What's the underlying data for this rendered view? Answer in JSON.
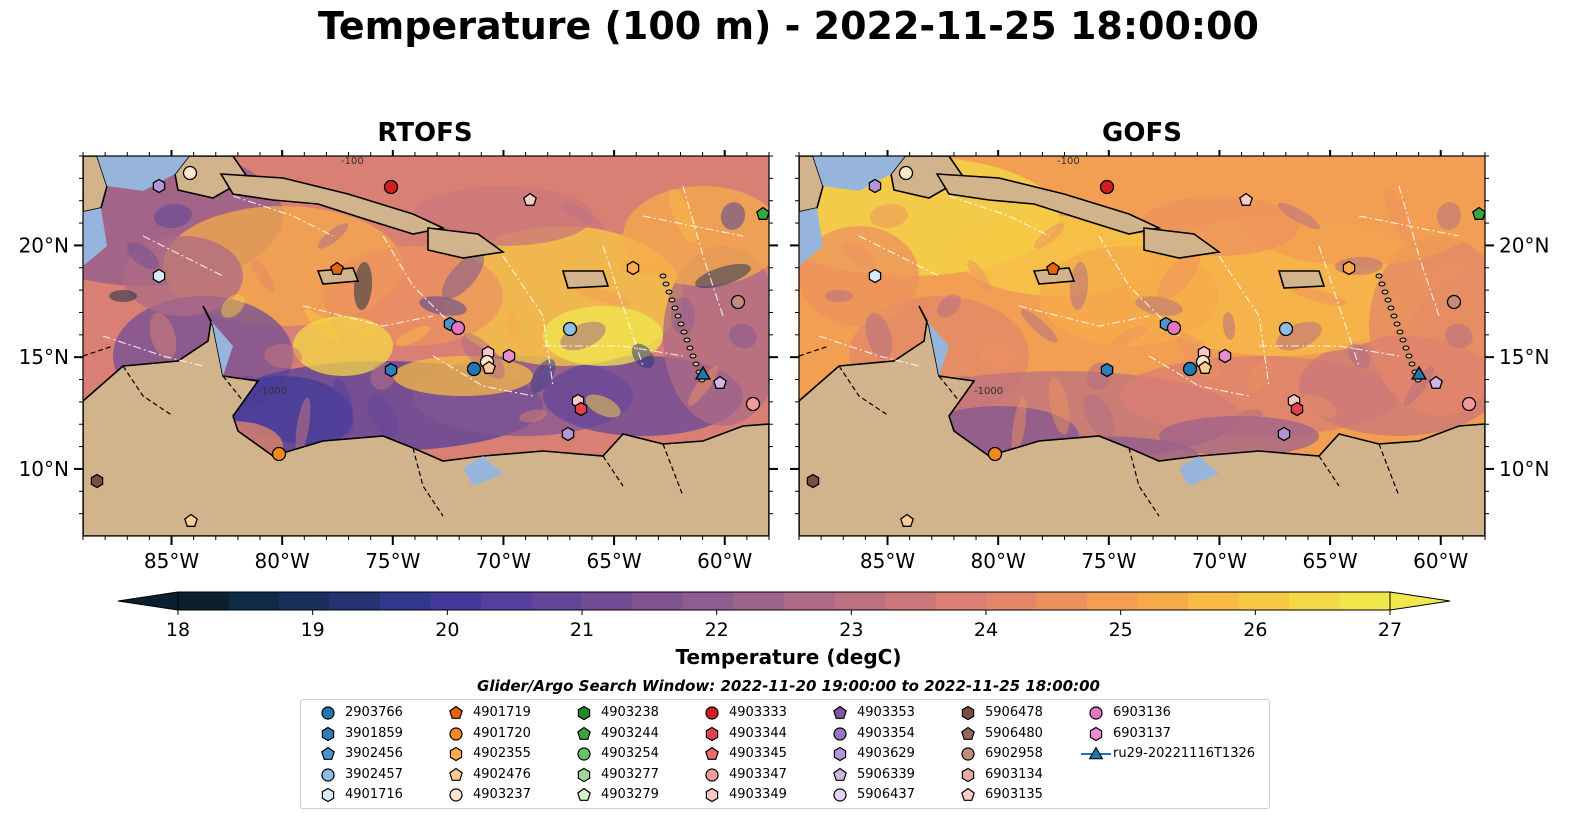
{
  "title": "Temperature (100 m) - 2022-11-25 18:00:00",
  "panels": [
    {
      "name": "RTOFS"
    },
    {
      "name": "GOFS"
    }
  ],
  "chart_data": [
    {
      "type": "heatmap",
      "title": "RTOFS",
      "x_ticks": [
        "85°W",
        "80°W",
        "75°W",
        "70°W",
        "65°W",
        "60°W"
      ],
      "x_tick_values": [
        -85,
        -80,
        -75,
        -70,
        -65,
        -60
      ],
      "y_ticks": [
        "20°N",
        "15°N",
        "10°N"
      ],
      "y_tick_values": [
        20,
        15,
        10
      ],
      "xlim": [
        -89,
        -58
      ],
      "ylim": [
        7,
        24
      ],
      "contour_labels": [
        "-1000",
        "-100"
      ],
      "variable": "Temperature",
      "units": "degC",
      "depth": "100 m"
    },
    {
      "type": "heatmap",
      "title": "GOFS",
      "x_ticks": [
        "85°W",
        "80°W",
        "75°W",
        "70°W",
        "65°W",
        "60°W"
      ],
      "x_tick_values": [
        -85,
        -80,
        -75,
        -70,
        -65,
        -60
      ],
      "y_ticks": [
        "20°N",
        "15°N",
        "10°N"
      ],
      "y_tick_values": [
        20,
        15,
        10
      ],
      "xlim": [
        -89,
        -58
      ],
      "ylim": [
        7,
        24
      ],
      "contour_labels": [
        "-1000",
        "-100"
      ],
      "variable": "Temperature",
      "units": "degC",
      "depth": "100 m"
    }
  ],
  "colorbar": {
    "label": "Temperature (degC)",
    "min": 18,
    "max": 27,
    "ticks": [
      "18",
      "19",
      "20",
      "21",
      "22",
      "23",
      "24",
      "25",
      "26",
      "27"
    ],
    "colors": [
      "#0b1f2e",
      "#0f2a44",
      "#182f5c",
      "#243374",
      "#31378d",
      "#423b99",
      "#543f9c",
      "#644699",
      "#724d96",
      "#815592",
      "#8f5c8f",
      "#9e638b",
      "#ad6b85",
      "#bc7180",
      "#cb777a",
      "#d97f73",
      "#e3876a",
      "#ec925f",
      "#f29e53",
      "#f5ab4a",
      "#f7ba45",
      "#f7c943",
      "#f4d845",
      "#f0e74d"
    ],
    "extend": "both"
  },
  "search_window": "Glider/Argo Search Window: 2022-11-20 19:00:00 to 2022-11-25 18:00:00",
  "legend": [
    {
      "label": "2903766",
      "marker": "circle",
      "color": "#1f77b4"
    },
    {
      "label": "3901859",
      "marker": "hexagon",
      "color": "#2e7ebd"
    },
    {
      "label": "3902456",
      "marker": "pentagon",
      "color": "#4d93cf"
    },
    {
      "label": "3902457",
      "marker": "circle",
      "color": "#8fbde3"
    },
    {
      "label": "4901716",
      "marker": "hexagon",
      "color": "#d6e9f8"
    },
    {
      "label": "4901719",
      "marker": "pentagon",
      "color": "#e6640c"
    },
    {
      "label": "4901720",
      "marker": "circle",
      "color": "#f5881f"
    },
    {
      "label": "4902355",
      "marker": "hexagon",
      "color": "#fbaa50"
    },
    {
      "label": "4902476",
      "marker": "pentagon",
      "color": "#fdcb94"
    },
    {
      "label": "4903237",
      "marker": "circle",
      "color": "#fde6cc"
    },
    {
      "label": "4903238",
      "marker": "hexagon",
      "color": "#22882a"
    },
    {
      "label": "4903244",
      "marker": "pentagon",
      "color": "#3aa53f"
    },
    {
      "label": "4903254",
      "marker": "circle",
      "color": "#66c466"
    },
    {
      "label": "4903277",
      "marker": "hexagon",
      "color": "#9ed99a"
    },
    {
      "label": "4903279",
      "marker": "pentagon",
      "color": "#d3f0cc"
    },
    {
      "label": "4903333",
      "marker": "circle",
      "color": "#d11f1f"
    },
    {
      "label": "4903344",
      "marker": "hexagon",
      "color": "#e2424a"
    },
    {
      "label": "4903345",
      "marker": "pentagon",
      "color": "#ec6a6e"
    },
    {
      "label": "4903347",
      "marker": "circle",
      "color": "#f59a9a"
    },
    {
      "label": "4903349",
      "marker": "hexagon",
      "color": "#fbc8c6"
    },
    {
      "label": "4903353",
      "marker": "pentagon",
      "color": "#7e55a8"
    },
    {
      "label": "4903354",
      "marker": "circle",
      "color": "#9a75c3"
    },
    {
      "label": "4903629",
      "marker": "hexagon",
      "color": "#b396d6"
    },
    {
      "label": "5906339",
      "marker": "pentagon",
      "color": "#cdb5e6"
    },
    {
      "label": "5906437",
      "marker": "circle",
      "color": "#e4d4f2"
    },
    {
      "label": "5906478",
      "marker": "hexagon",
      "color": "#7b4d44"
    },
    {
      "label": "5906480",
      "marker": "pentagon",
      "color": "#98675b"
    },
    {
      "label": "6902958",
      "marker": "circle",
      "color": "#c38b7b"
    },
    {
      "label": "6903134",
      "marker": "hexagon",
      "color": "#e7aba0"
    },
    {
      "label": "6903135",
      "marker": "pentagon",
      "color": "#f7cdc5"
    },
    {
      "label": "6903136",
      "marker": "circle",
      "color": "#e377c2"
    },
    {
      "label": "6903137",
      "marker": "hexagon",
      "color": "#ea8cce"
    },
    {
      "label": "ru29-20221116T1326",
      "marker": "triangle-line",
      "color": "#1f77b4"
    }
  ],
  "colors": {
    "land": "#d2b48c",
    "water": "#96b4dc",
    "outside": "#07212f"
  }
}
